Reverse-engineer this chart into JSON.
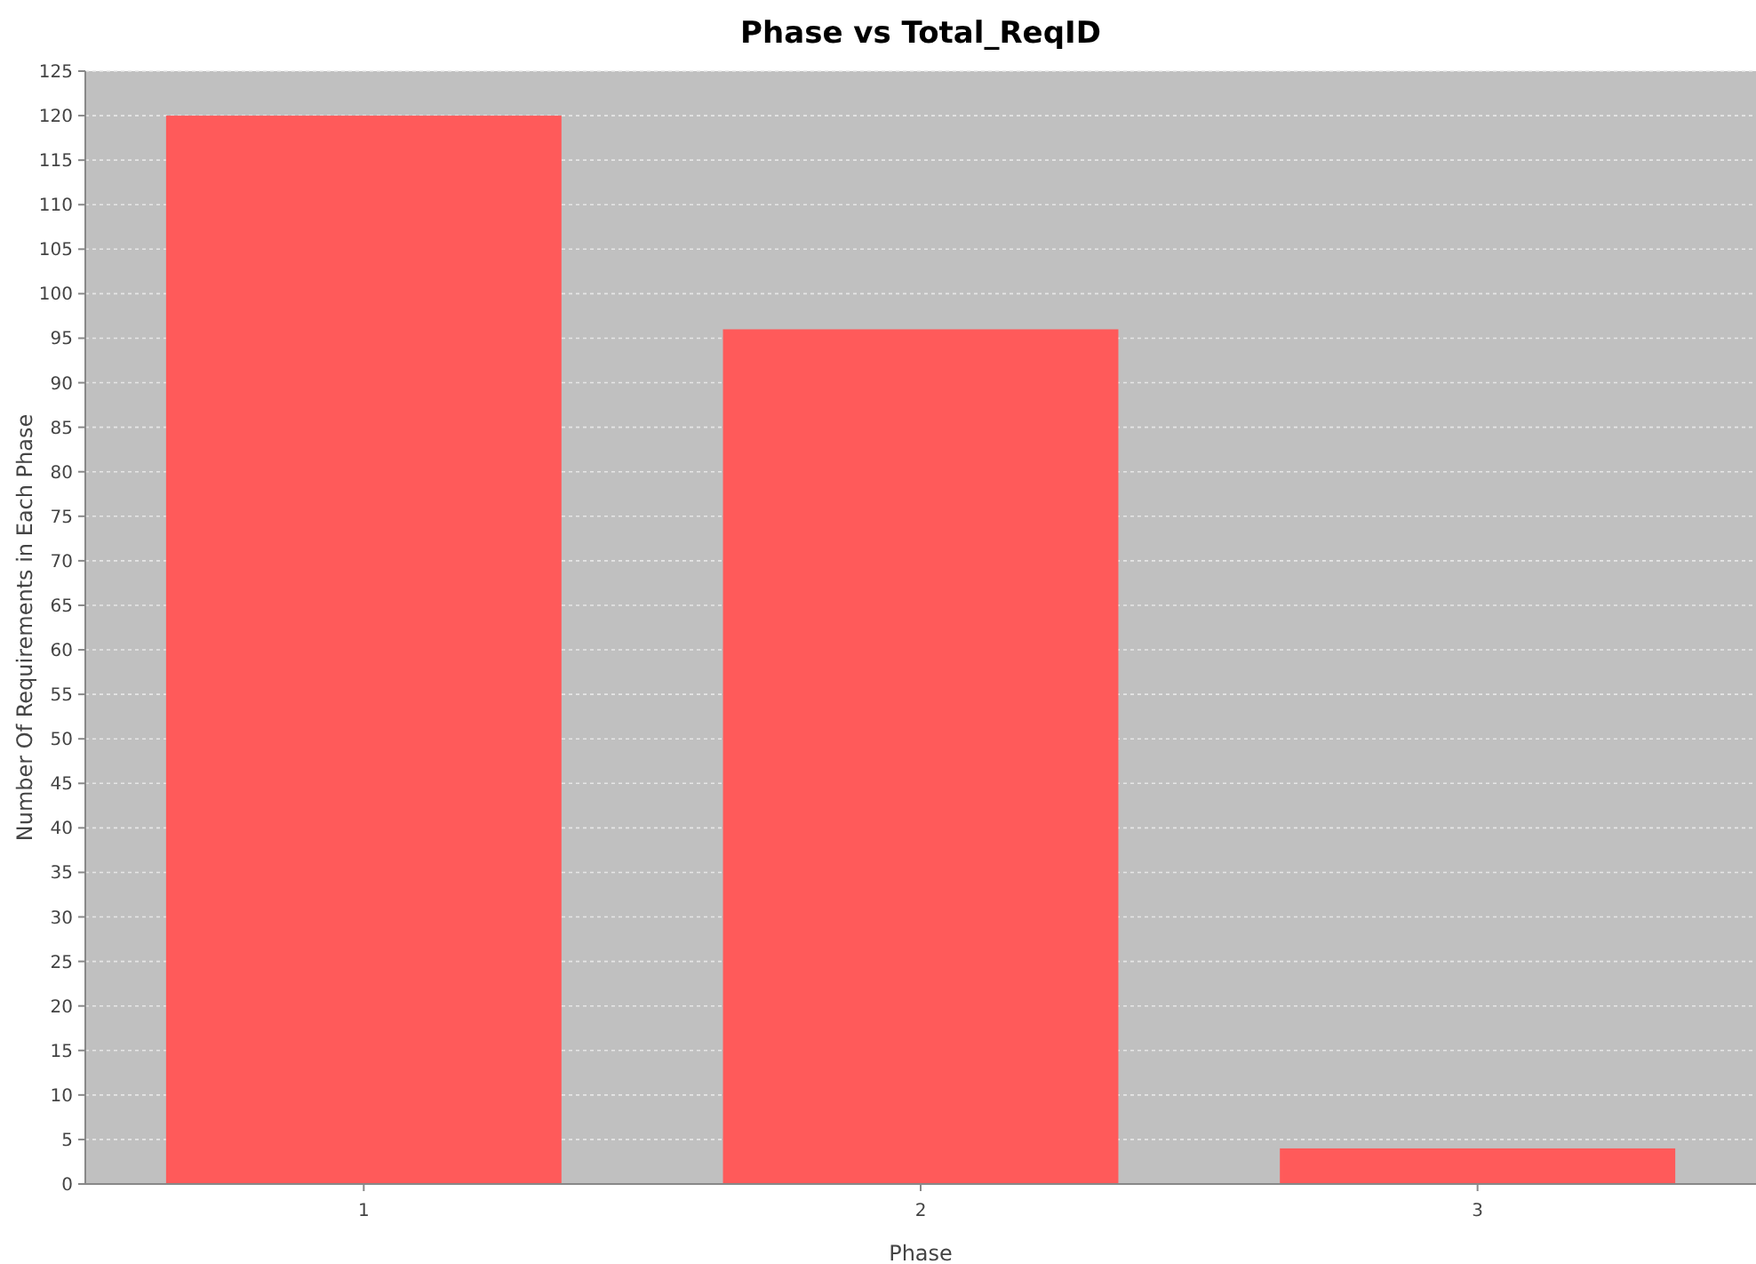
{
  "chart_data": {
    "type": "bar",
    "title": "Phase vs Total_ReqID",
    "xlabel": "Phase",
    "ylabel": "Number Of Requirements in Each Phase",
    "categories": [
      "1",
      "2",
      "3"
    ],
    "values": [
      120,
      96,
      4
    ],
    "color": "#ff5a5a",
    "ylim": [
      0,
      125
    ],
    "yticks": [
      0,
      5,
      10,
      15,
      20,
      25,
      30,
      35,
      40,
      45,
      50,
      55,
      60,
      65,
      70,
      75,
      80,
      85,
      90,
      95,
      100,
      105,
      110,
      115,
      120,
      125
    ],
    "grid": "y"
  }
}
